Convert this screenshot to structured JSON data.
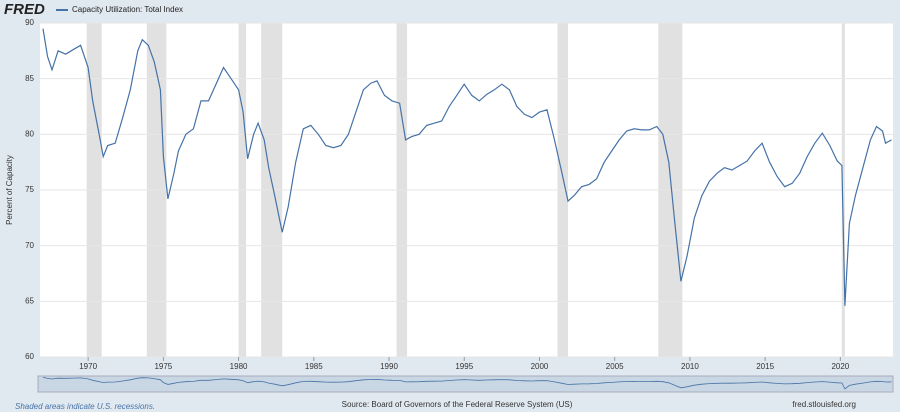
{
  "logo": "FRED",
  "chart_data": {
    "type": "line",
    "series": [
      {
        "name": "Capacity Utilization: Total Index",
        "color": "#4572a7",
        "x": [
          1967.0,
          1967.3,
          1967.6,
          1968.0,
          1968.5,
          1969.0,
          1969.5,
          1970.0,
          1970.3,
          1970.8,
          1971.0,
          1971.3,
          1971.8,
          1972.3,
          1972.8,
          1973.3,
          1973.6,
          1974.0,
          1974.4,
          1974.8,
          1975.0,
          1975.3,
          1975.7,
          1976.0,
          1976.5,
          1977.0,
          1977.5,
          1978.0,
          1978.5,
          1979.0,
          1979.5,
          1980.0,
          1980.3,
          1980.6,
          1981.0,
          1981.3,
          1981.7,
          1982.0,
          1982.4,
          1982.9,
          1983.3,
          1983.8,
          1984.3,
          1984.8,
          1985.3,
          1985.8,
          1986.3,
          1986.8,
          1987.3,
          1987.8,
          1988.3,
          1988.8,
          1989.2,
          1989.7,
          1990.2,
          1990.7,
          1991.1,
          1991.5,
          1992.0,
          1992.5,
          1993.0,
          1993.5,
          1994.0,
          1994.5,
          1995.0,
          1995.5,
          1996.0,
          1996.5,
          1997.0,
          1997.5,
          1998.0,
          1998.5,
          1999.0,
          1999.5,
          2000.0,
          2000.5,
          2001.0,
          2001.5,
          2001.9,
          2002.3,
          2002.8,
          2003.3,
          2003.8,
          2004.3,
          2004.8,
          2005.3,
          2005.8,
          2006.3,
          2006.8,
          2007.3,
          2007.8,
          2008.2,
          2008.6,
          2009.0,
          2009.4,
          2009.8,
          2010.3,
          2010.8,
          2011.3,
          2011.8,
          2012.3,
          2012.8,
          2013.3,
          2013.8,
          2014.3,
          2014.8,
          2015.3,
          2015.8,
          2016.3,
          2016.8,
          2017.3,
          2017.8,
          2018.3,
          2018.8,
          2019.3,
          2019.8,
          2020.1,
          2020.3,
          2020.6,
          2021.0,
          2021.5,
          2022.0,
          2022.4,
          2022.8,
          2023.0,
          2023.4
        ],
        "values": [
          89.5,
          87,
          85.8,
          87.5,
          87.2,
          87.6,
          88,
          86,
          83,
          79.5,
          78,
          79,
          79.2,
          81.5,
          84,
          87.5,
          88.5,
          88,
          86.5,
          84,
          78,
          74.2,
          76.5,
          78.5,
          80,
          80.5,
          83,
          83,
          84.5,
          86,
          85,
          84,
          82,
          77.8,
          80,
          81,
          79.5,
          77,
          74.5,
          71.2,
          73.5,
          77.5,
          80.5,
          80.8,
          80,
          79,
          78.8,
          79,
          80,
          82,
          84,
          84.6,
          84.8,
          83.5,
          83,
          82.8,
          79.5,
          79.8,
          80,
          80.8,
          81,
          81.2,
          82.5,
          83.5,
          84.5,
          83.5,
          83,
          83.6,
          84,
          84.5,
          84,
          82.5,
          81.8,
          81.5,
          82,
          82.2,
          79.5,
          76.5,
          74,
          74.5,
          75.3,
          75.5,
          76,
          77.5,
          78.5,
          79.5,
          80.3,
          80.5,
          80.4,
          80.4,
          80.7,
          80,
          77.5,
          72,
          66.8,
          69,
          72.5,
          74.5,
          75.8,
          76.5,
          77,
          76.8,
          77.2,
          77.6,
          78.5,
          79.2,
          77.5,
          76.2,
          75.3,
          75.6,
          76.5,
          78,
          79.2,
          80.1,
          79,
          77.6,
          77.2,
          64.6,
          72,
          74.5,
          77,
          79.5,
          80.7,
          80.3,
          79.2,
          79.5
        ]
      }
    ],
    "recessions": [
      [
        1969.9,
        1970.9
      ],
      [
        1973.9,
        1975.2
      ],
      [
        1980.0,
        1980.5
      ],
      [
        1981.5,
        1982.9
      ],
      [
        1990.5,
        1991.2
      ],
      [
        2001.2,
        2001.9
      ],
      [
        2007.9,
        2009.5
      ],
      [
        2020.1,
        2020.3
      ]
    ],
    "xlim": [
      1966.8,
      2023.5
    ],
    "xticks": [
      1970,
      1975,
      1980,
      1985,
      1990,
      1995,
      2000,
      2005,
      2010,
      2015,
      2020
    ],
    "ylim": [
      60,
      90
    ],
    "yticks": [
      60,
      65,
      70,
      75,
      80,
      85,
      90
    ],
    "grid": true,
    "ylabel": "Percent of Capacity",
    "note": "Shaded areas indicate U.S. recessions.",
    "source": "Source: Board of Governors of the Federal Reserve System (US)",
    "site": "fred.stlouisfed.org"
  }
}
